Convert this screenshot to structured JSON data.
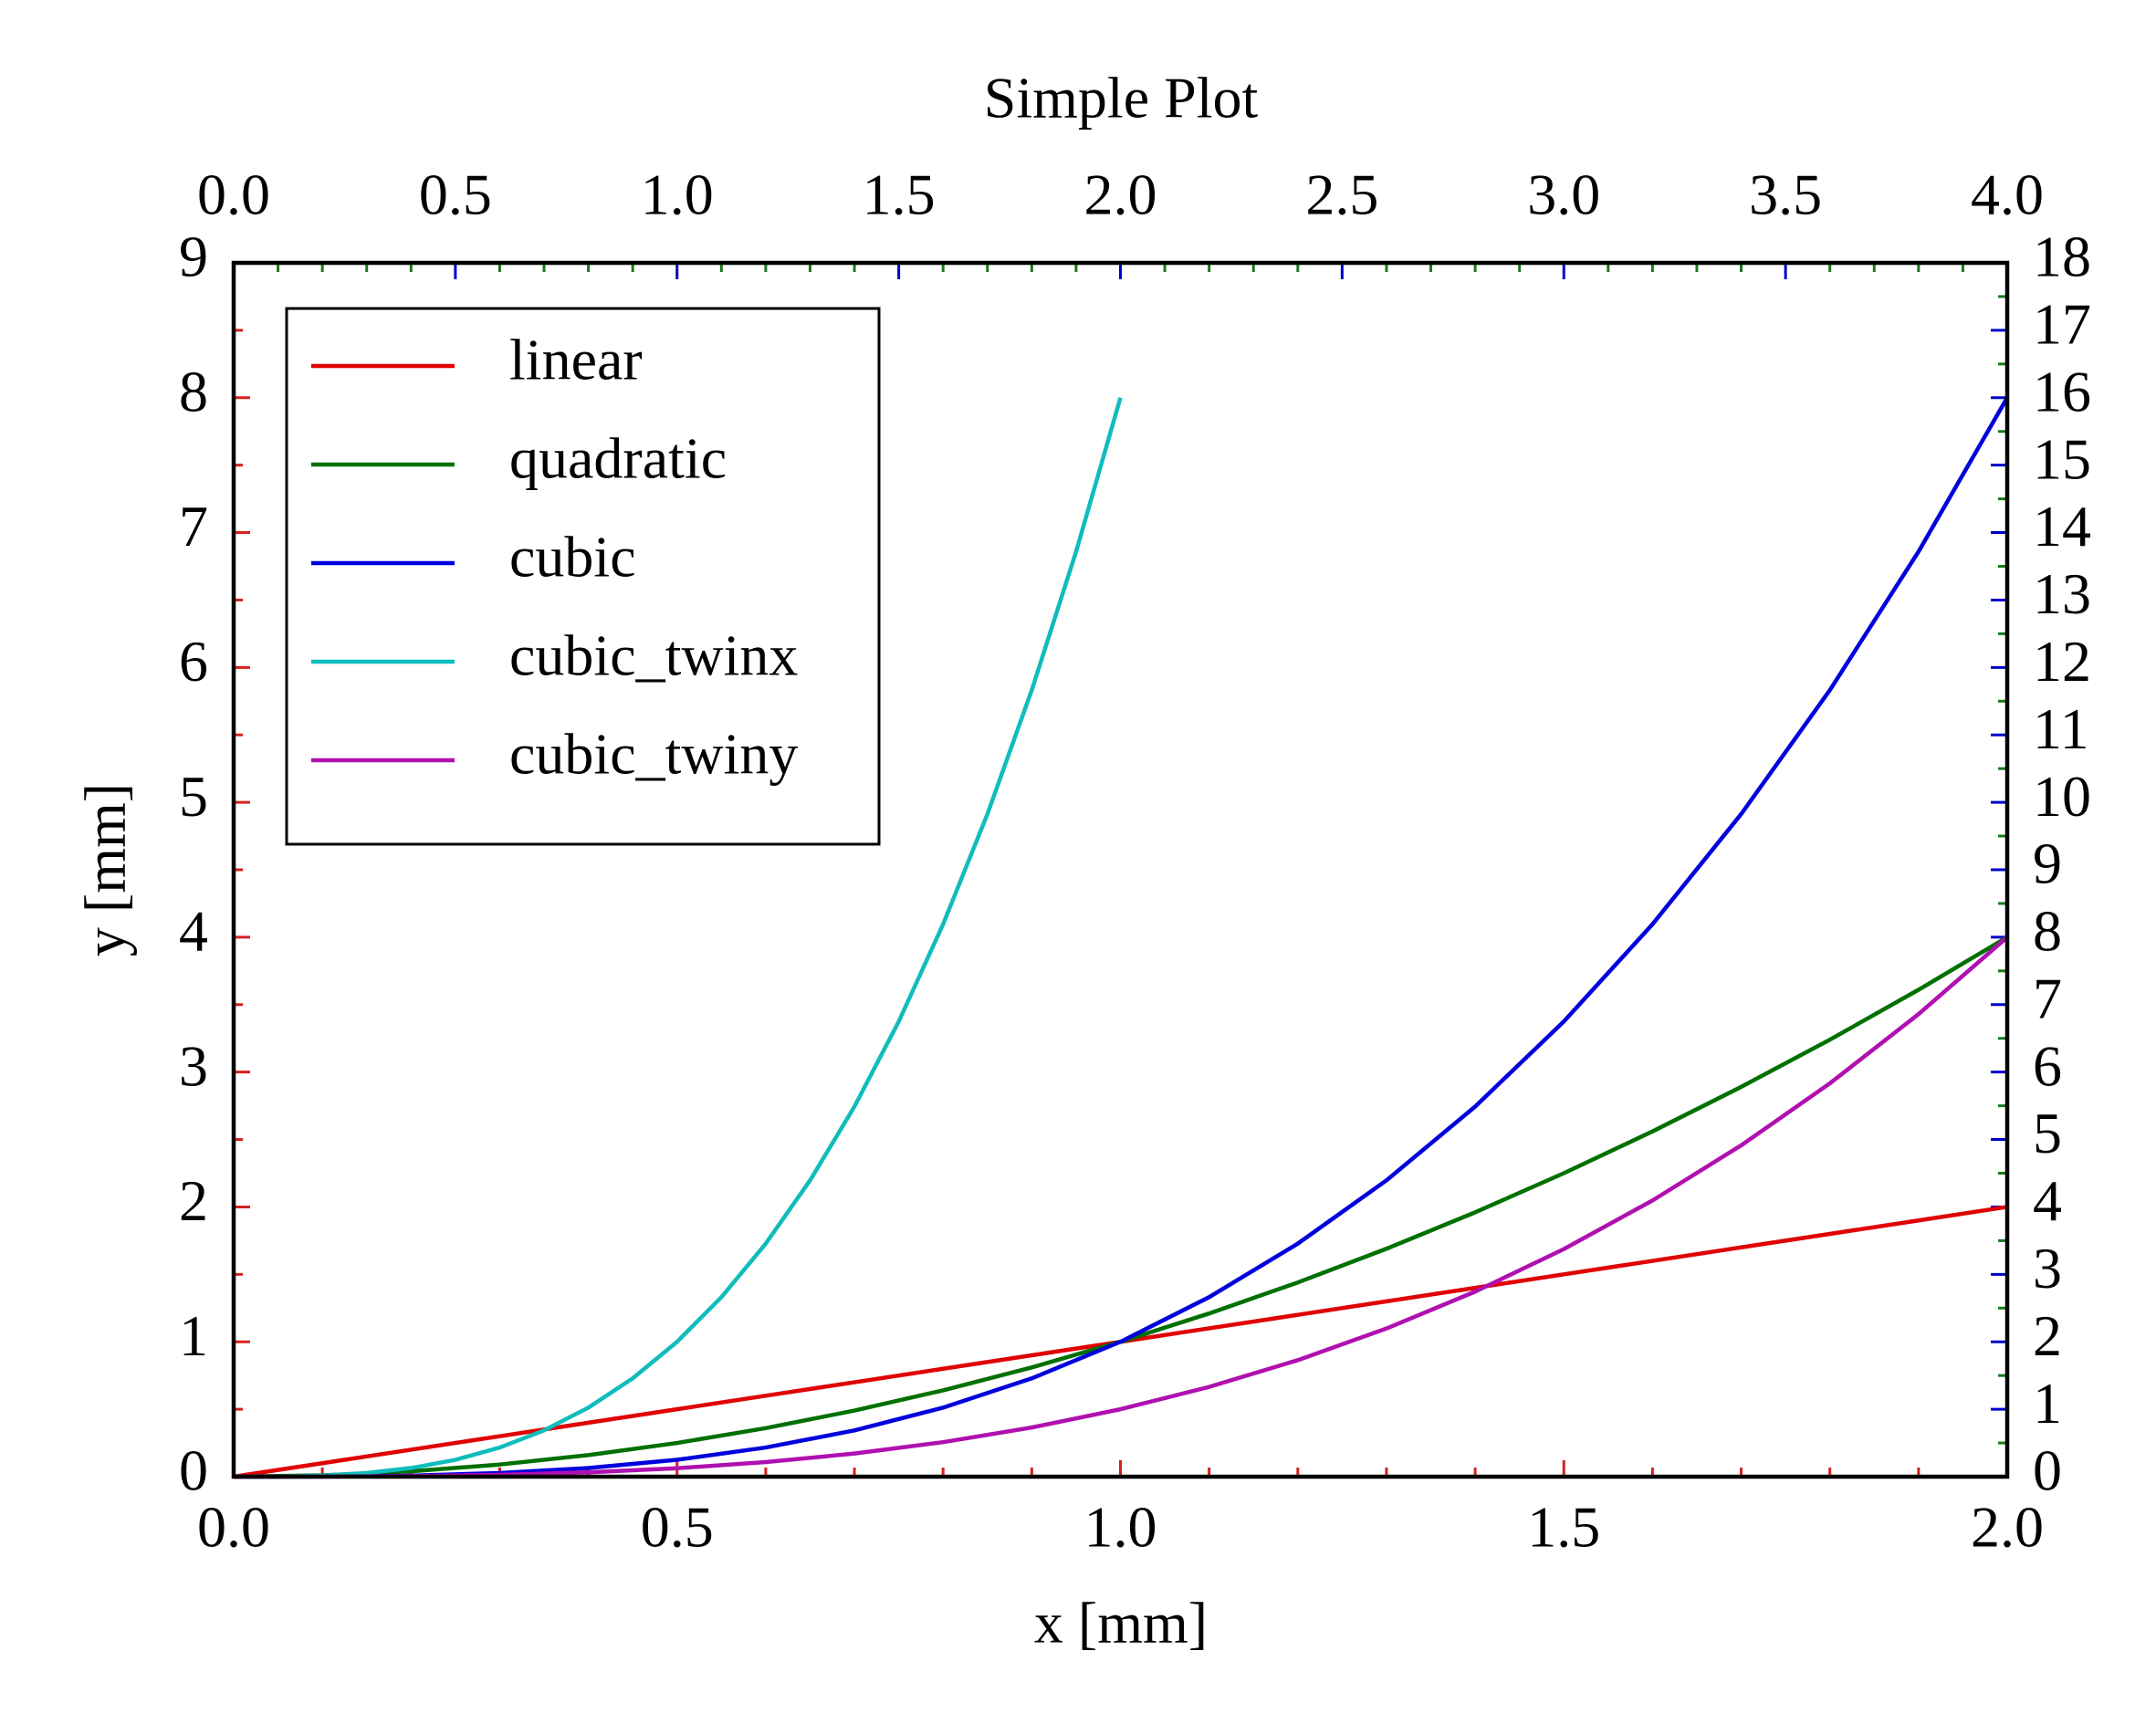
{
  "chart_data": {
    "type": "line",
    "title": "Simple Plot",
    "xlabel": "x [mm]",
    "ylabel": "y [mm]",
    "xlim": [
      0,
      2
    ],
    "xticks": [
      {
        "value": 0,
        "label": "0.0"
      },
      0.5,
      {
        "value": 1,
        "label": "1.0"
      },
      1.5,
      {
        "value": 2,
        "label": "2.0"
      }
    ],
    "xminorticks": [
      0.1,
      0.2,
      0.3,
      0.4,
      0.6,
      0.7,
      0.8,
      0.9,
      1.1,
      1.2,
      1.3,
      1.4,
      1.6,
      1.7,
      1.8,
      1.9
    ],
    "x2lim": [
      0,
      4
    ],
    "x2ticks": [
      {
        "value": 0,
        "label": "0.0"
      },
      0.5,
      {
        "value": 1,
        "label": "1.0"
      },
      1.5,
      {
        "value": 2,
        "label": "2.0"
      },
      2.5,
      {
        "value": 3,
        "label": "3.0"
      },
      3.5,
      {
        "value": 4,
        "label": "4.0"
      }
    ],
    "x2minorticks": [
      0.1,
      0.2,
      0.3,
      0.4,
      0.6,
      0.7,
      0.8,
      0.9,
      1.1,
      1.2,
      1.3,
      1.4,
      1.6,
      1.7,
      1.8,
      1.9,
      2.1,
      2.2,
      2.3,
      2.4,
      2.6,
      2.7,
      2.8,
      2.9,
      3.1,
      3.2,
      3.3,
      3.4,
      3.6,
      3.7,
      3.8,
      3.9
    ],
    "ylim": [
      0,
      9
    ],
    "yticks": [
      0,
      1,
      2,
      3,
      4,
      5,
      6,
      7,
      8,
      9
    ],
    "yminorticks": [
      0.5,
      1.5,
      2.5,
      3.5,
      4.5,
      5.5,
      6.5,
      7.5,
      8.5
    ],
    "y2lim": [
      0,
      18
    ],
    "y2ticks": [
      0,
      1,
      2,
      3,
      4,
      5,
      6,
      7,
      8,
      9,
      10,
      11,
      12,
      13,
      14,
      15,
      16,
      17,
      18
    ],
    "y2minorticks": [
      0.5,
      1.5,
      2.5,
      3.5,
      4.5,
      5.5,
      6.5,
      7.5,
      8.5,
      9.5,
      10.5,
      11.5,
      12.5,
      13.5,
      14.5,
      15.5,
      16.5,
      17.5
    ],
    "main_tick_color": "#d62020",
    "twin_tick_color": "#0000cc",
    "twin_minor_tick_color": "#1a7a1a",
    "legend": "upper left",
    "series": [
      {
        "name": "linear",
        "color": "#e00000",
        "x": [
          0,
          0.1,
          0.2,
          0.3,
          0.4,
          0.5,
          0.6,
          0.7,
          0.8,
          0.9,
          1,
          1.1,
          1.2,
          1.3,
          1.4,
          1.5,
          1.6,
          1.7,
          1.8,
          1.9,
          2
        ],
        "values": [
          0,
          0.1,
          0.2,
          0.3,
          0.4,
          0.5,
          0.6,
          0.7,
          0.8,
          0.9,
          1,
          1.1,
          1.2,
          1.3,
          1.4,
          1.5,
          1.6,
          1.7,
          1.8,
          1.9,
          2
        ]
      },
      {
        "name": "quadratic",
        "color": "#007000",
        "x": [
          0,
          0.1,
          0.2,
          0.3,
          0.4,
          0.5,
          0.6,
          0.7,
          0.8,
          0.9,
          1,
          1.1,
          1.2,
          1.3,
          1.4,
          1.5,
          1.6,
          1.7,
          1.8,
          1.9,
          2
        ],
        "values": [
          0,
          0.01,
          0.04,
          0.09,
          0.16,
          0.25,
          0.36,
          0.49,
          0.64,
          0.81,
          1,
          1.21,
          1.44,
          1.69,
          1.96,
          2.25,
          2.56,
          2.89,
          3.24,
          3.61,
          4
        ]
      },
      {
        "name": "cubic",
        "color": "#0000dd",
        "x": [
          0,
          0.1,
          0.2,
          0.3,
          0.4,
          0.5,
          0.6,
          0.7,
          0.8,
          0.9,
          1,
          1.1,
          1.2,
          1.3,
          1.4,
          1.5,
          1.6,
          1.7,
          1.8,
          1.9,
          2
        ],
        "values": [
          0,
          0.001,
          0.008,
          0.027,
          0.064,
          0.125,
          0.216,
          0.343,
          0.512,
          0.729,
          1,
          1.331,
          1.728,
          2.197,
          2.744,
          3.375,
          4.096,
          4.913,
          5.832,
          6.859,
          8
        ]
      },
      {
        "name": "cubic_twinx",
        "color": "#10bcbc",
        "axis": "y2",
        "x": [
          0,
          0.05,
          0.1,
          0.15,
          0.2,
          0.25,
          0.3,
          0.35,
          0.4,
          0.45,
          0.5,
          0.55,
          0.6,
          0.65,
          0.7,
          0.75,
          0.8,
          0.85,
          0.9,
          0.95,
          1
        ],
        "values": [
          0,
          0.002,
          0.016,
          0.054,
          0.128,
          0.25,
          0.432,
          0.686,
          1.024,
          1.458,
          2,
          2.662,
          3.456,
          4.394,
          5.488,
          6.75,
          8.192,
          9.826,
          11.664,
          13.718,
          16
        ]
      },
      {
        "name": "cubic_twiny",
        "color": "#b010b0",
        "xaxis": "x2",
        "x": [
          0,
          0.2,
          0.4,
          0.6,
          0.8,
          1,
          1.2,
          1.4,
          1.6,
          1.8,
          2,
          2.2,
          2.4,
          2.6,
          2.8,
          3,
          3.2,
          3.4,
          3.6,
          3.8,
          4
        ],
        "values": [
          0,
          0.0005,
          0.004,
          0.0135,
          0.032,
          0.0625,
          0.108,
          0.1715,
          0.256,
          0.3645,
          0.5,
          0.6655,
          0.864,
          1.0985,
          1.372,
          1.6875,
          2.048,
          2.4565,
          2.916,
          3.4295,
          4
        ]
      }
    ]
  }
}
